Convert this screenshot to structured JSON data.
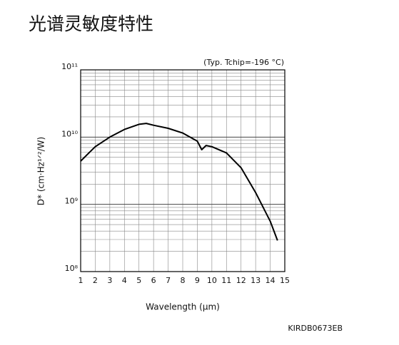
{
  "chart_data": {
    "type": "line",
    "title": "光谱灵敏度特性",
    "annotation": "(Typ. Tchip=-196 °C)",
    "footer": "KIRDB0673EB",
    "x_label": "Wavelength (μm)",
    "y_label": "D* (cm·Hz¹ᐟ²/W)",
    "x": [
      1,
      2,
      3,
      4,
      5,
      5.5,
      6,
      7,
      8,
      9,
      9.3,
      9.6,
      10,
      11,
      12,
      13,
      14,
      14.5
    ],
    "series": [
      {
        "color": "#000000",
        "values": [
          4400000000,
          7200000000,
          10000000000,
          13000000000,
          15500000000,
          16000000000,
          15000000000,
          13500000000,
          11500000000,
          8700000000,
          6500000000,
          7500000000,
          7200000000,
          5800000000,
          3500000000,
          1500000000,
          560000000,
          290000000
        ]
      }
    ],
    "xlim": [
      1,
      15
    ],
    "xticks": [
      1,
      2,
      3,
      4,
      5,
      6,
      7,
      8,
      9,
      10,
      11,
      12,
      13,
      14,
      15
    ],
    "ylim": [
      100000000,
      100000000000
    ],
    "yticks": [
      {
        "value": 100000000,
        "label": "10⁸"
      },
      {
        "value": 1000000000,
        "label": "10⁹"
      },
      {
        "value": 10000000000,
        "label": "10¹⁰"
      },
      {
        "value": 100000000000,
        "label": "10¹¹"
      }
    ],
    "log_y": true,
    "grid": true
  }
}
